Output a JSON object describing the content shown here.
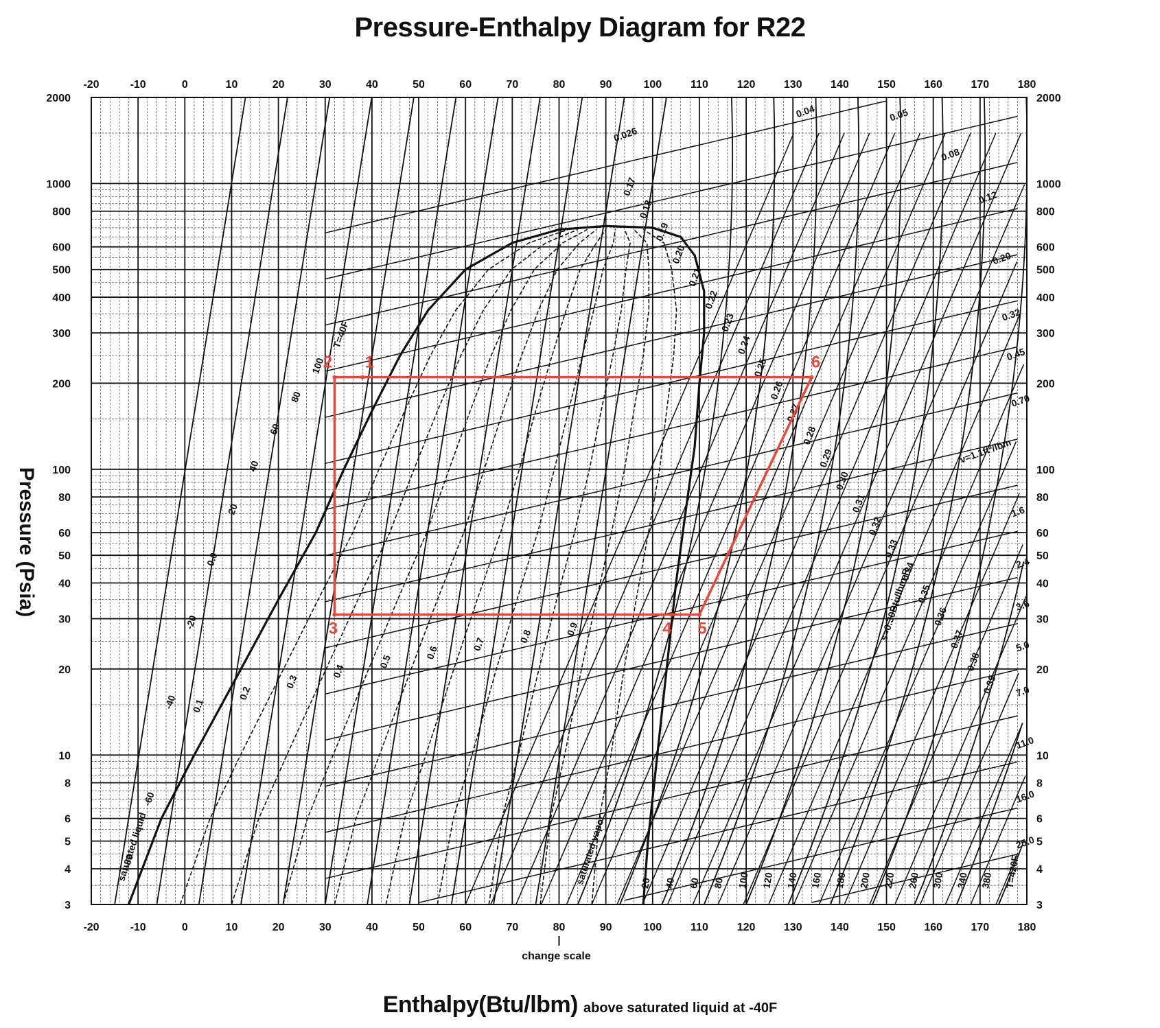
{
  "chart_data": {
    "type": "line",
    "title": "Pressure-Enthalpy Diagram for R22",
    "xlabel": "Enthalpy(Btu/lbm)",
    "xlabel_note": "above saturated liquid at -40F",
    "ylabel": "Pressure (Psia)",
    "x_scale_note": "change scale",
    "xlim": [
      -20,
      180
    ],
    "ylim": [
      3,
      2000
    ],
    "yscale": "log",
    "x_ticks": [
      -20,
      -10,
      0,
      10,
      20,
      30,
      40,
      50,
      60,
      70,
      80,
      90,
      100,
      110,
      120,
      130,
      140,
      150,
      160,
      170,
      180
    ],
    "y_ticks": [
      3,
      4,
      5,
      6,
      8,
      10,
      20,
      30,
      40,
      50,
      60,
      80,
      100,
      200,
      300,
      400,
      500,
      600,
      800,
      1000,
      2000
    ],
    "grid": true,
    "cycle_color": "#e8473b",
    "series": [
      {
        "name": "",
        "points": [
          {
            "label": "3",
            "x": 32,
            "y": 31
          },
          {
            "label": "2",
            "x": 32,
            "y": 210
          },
          {
            "label": "1",
            "x": 38,
            "y": 210
          },
          {
            "label": "6",
            "x": 134,
            "y": 210
          },
          {
            "label": "5",
            "x": 110,
            "y": 31
          },
          {
            "label": "4",
            "x": 104,
            "y": 31
          }
        ],
        "closed": true
      }
    ],
    "isotherm_labels": [
      "-80",
      "-60",
      "-40",
      "-20",
      "0.0",
      "20",
      "40",
      "60",
      "80",
      "100",
      "T=40F",
      "20",
      "40",
      "60",
      "80",
      "100",
      "120",
      "140",
      "160",
      "180",
      "200",
      "220",
      "260",
      "300",
      "340",
      "380",
      "T=420F"
    ],
    "quality_labels": [
      "0.1",
      "0.2",
      "0.3",
      "0.4",
      "0.5",
      "0.6",
      "0.7",
      "0.8",
      "0.9"
    ],
    "volume_labels": [
      "0.026",
      "0.04",
      "0.05",
      "0.08",
      "0.12",
      "0.20",
      "0.32",
      "0.45",
      "0.70",
      "v=1.1ft³/lbm",
      "1.6",
      "2.4",
      "3.6",
      "5.0",
      "7.0",
      "11.0",
      "16.0",
      "25.0"
    ],
    "entropy_labels": [
      "0.17",
      "0.18",
      "0.19",
      "0.20",
      "0.21",
      "0.22",
      "0.23",
      "0.24",
      "0.25",
      "0.26",
      "0.27",
      "0.28",
      "0.29",
      "0.30",
      "0.31",
      "0.32",
      "0.33",
      "0.34",
      "0.35",
      "0.36",
      "0.37",
      "0.38",
      "0.39"
    ],
    "entropy_unit_label": "s=0.30Btu/lbm-R",
    "curve_labels": [
      "saturated liquid",
      "saturated vapor"
    ]
  }
}
